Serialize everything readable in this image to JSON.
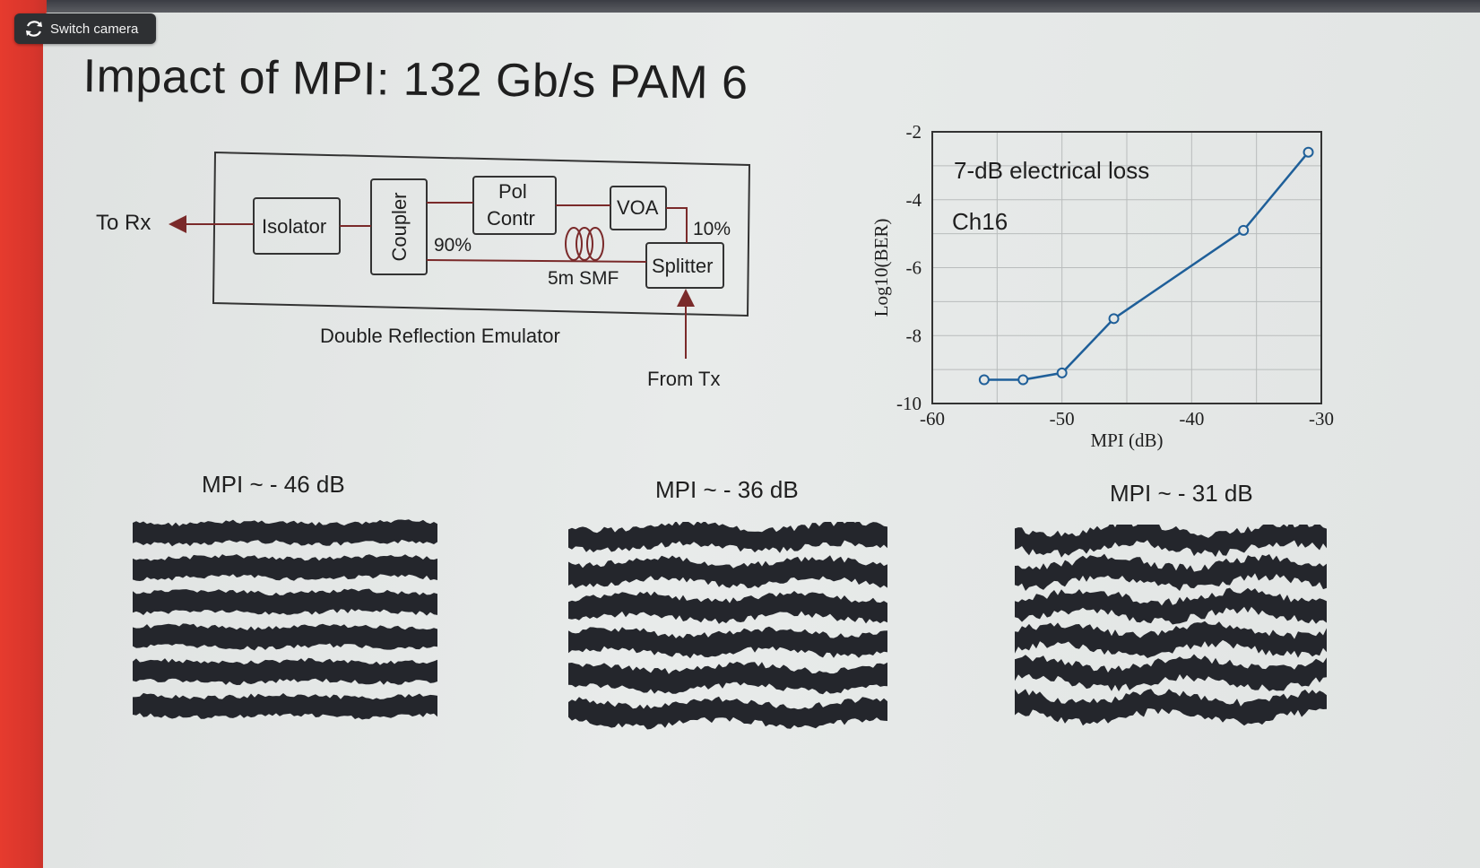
{
  "toolbar": {
    "switch_camera_label": "Switch camera"
  },
  "slide": {
    "title": "Impact of MPI: 132 Gb/s PAM 6",
    "diagram": {
      "to_rx": "To Rx",
      "isolator": "Isolator",
      "coupler": "Coupler",
      "pol_line1": "Pol",
      "pol_line2": "Contr",
      "voa": "VOA",
      "splitter": "Splitter",
      "pct_90": "90%",
      "pct_10": "10%",
      "fiber": "5m SMF",
      "caption": "Double Reflection Emulator",
      "from_tx": "From Tx"
    },
    "eye_labels": [
      "MPI ~ - 46 dB",
      "MPI ~ - 36 dB",
      "MPI ~ - 31 dB"
    ]
  },
  "chart_data": {
    "type": "line",
    "title": "",
    "annotations": [
      "7-dB electrical loss",
      "Ch16"
    ],
    "xlabel": "MPI (dB)",
    "ylabel": "Log10(BER)",
    "xlim": [
      -60,
      -30
    ],
    "ylim": [
      -10,
      -2
    ],
    "x_ticks": [
      -60,
      -50,
      -40,
      -30
    ],
    "y_ticks": [
      -2,
      -4,
      -6,
      -8,
      -10
    ],
    "grid": true,
    "series": [
      {
        "x": [
          -56,
          -53,
          -50,
          -46,
          -36,
          -31
        ],
        "y": [
          -9.3,
          -9.3,
          -9.1,
          -7.5,
          -4.9,
          -2.6
        ]
      }
    ],
    "color": "#1f5f99"
  }
}
